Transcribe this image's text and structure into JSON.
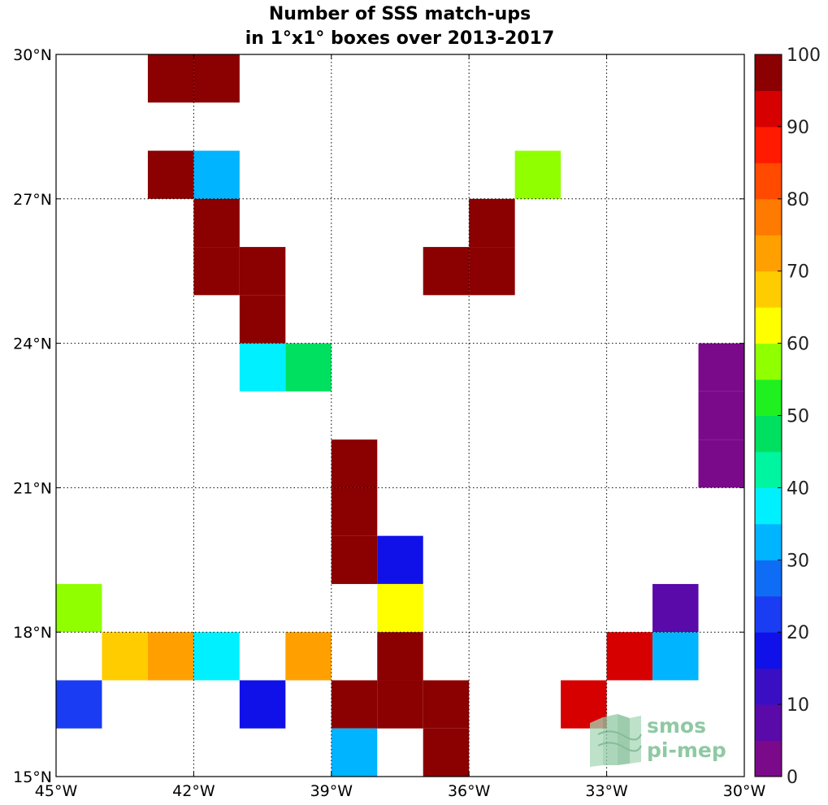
{
  "chart_data": {
    "type": "heatmap",
    "title": [
      "Number of SSS match-ups",
      "in 1°x1° boxes over 2013-2017"
    ],
    "xlim": [
      -45,
      -30
    ],
    "ylim": [
      15,
      30
    ],
    "x_ticks": [
      {
        "value": -45,
        "label": "45°W"
      },
      {
        "value": -42,
        "label": "42°W"
      },
      {
        "value": -39,
        "label": "39°W"
      },
      {
        "value": -36,
        "label": "36°W"
      },
      {
        "value": -33,
        "label": "33°W"
      },
      {
        "value": -30,
        "label": "30°W"
      }
    ],
    "y_ticks": [
      {
        "value": 30,
        "label": "30°N"
      },
      {
        "value": 27,
        "label": "27°N"
      },
      {
        "value": 24,
        "label": "24°N"
      },
      {
        "value": 21,
        "label": "21°N"
      },
      {
        "value": 18,
        "label": "18°N"
      },
      {
        "value": 15,
        "label": "15°N"
      }
    ],
    "grid": true,
    "colorbar": {
      "min": 0,
      "max": 100,
      "ticks": [
        0,
        10,
        20,
        30,
        40,
        50,
        60,
        70,
        80,
        90,
        100
      ],
      "levels": [
        {
          "from": 0,
          "to": 5,
          "color": "#7a0a8a"
        },
        {
          "from": 5,
          "to": 10,
          "color": "#5a0aa8"
        },
        {
          "from": 10,
          "to": 15,
          "color": "#3a0fc4"
        },
        {
          "from": 15,
          "to": 20,
          "color": "#1010e8"
        },
        {
          "from": 20,
          "to": 25,
          "color": "#1a3cf2"
        },
        {
          "from": 25,
          "to": 30,
          "color": "#0f6cf5"
        },
        {
          "from": 30,
          "to": 35,
          "color": "#00b4ff"
        },
        {
          "from": 35,
          "to": 40,
          "color": "#00f0ff"
        },
        {
          "from": 40,
          "to": 45,
          "color": "#00f5a0"
        },
        {
          "from": 45,
          "to": 50,
          "color": "#00e060"
        },
        {
          "from": 50,
          "to": 55,
          "color": "#20f020"
        },
        {
          "from": 55,
          "to": 60,
          "color": "#90ff00"
        },
        {
          "from": 60,
          "to": 65,
          "color": "#ffff00"
        },
        {
          "from": 65,
          "to": 70,
          "color": "#ffcc00"
        },
        {
          "from": 70,
          "to": 75,
          "color": "#ffa000"
        },
        {
          "from": 75,
          "to": 80,
          "color": "#ff7a00"
        },
        {
          "from": 80,
          "to": 85,
          "color": "#ff4a00"
        },
        {
          "from": 85,
          "to": 90,
          "color": "#ff1a00"
        },
        {
          "from": 90,
          "to": 95,
          "color": "#d60000"
        },
        {
          "from": 95,
          "to": 100,
          "color": "#8b0000"
        }
      ]
    },
    "cells": [
      {
        "lon": -43,
        "lat": 29,
        "value": 100
      },
      {
        "lon": -42,
        "lat": 29,
        "value": 100
      },
      {
        "lon": -43,
        "lat": 27,
        "value": 100
      },
      {
        "lon": -42,
        "lat": 27,
        "value": 32
      },
      {
        "lon": -35,
        "lat": 27,
        "value": 58
      },
      {
        "lon": -42,
        "lat": 26,
        "value": 100
      },
      {
        "lon": -36,
        "lat": 26,
        "value": 100
      },
      {
        "lon": -42,
        "lat": 25,
        "value": 100
      },
      {
        "lon": -41,
        "lat": 25,
        "value": 100
      },
      {
        "lon": -37,
        "lat": 25,
        "value": 100
      },
      {
        "lon": -36,
        "lat": 25,
        "value": 100
      },
      {
        "lon": -41,
        "lat": 24,
        "value": 100
      },
      {
        "lon": -41,
        "lat": 23,
        "value": 38
      },
      {
        "lon": -40,
        "lat": 23,
        "value": 47
      },
      {
        "lon": -31,
        "lat": 23,
        "value": 2
      },
      {
        "lon": -31,
        "lat": 22,
        "value": 2
      },
      {
        "lon": -31,
        "lat": 21,
        "value": 2
      },
      {
        "lon": -39,
        "lat": 21,
        "value": 100
      },
      {
        "lon": -39,
        "lat": 20,
        "value": 100
      },
      {
        "lon": -39,
        "lat": 19,
        "value": 100
      },
      {
        "lon": -38,
        "lat": 19,
        "value": 18
      },
      {
        "lon": -45,
        "lat": 18,
        "value": 58
      },
      {
        "lon": -38,
        "lat": 18,
        "value": 62
      },
      {
        "lon": -32,
        "lat": 18,
        "value": 7
      },
      {
        "lon": -44,
        "lat": 17,
        "value": 68
      },
      {
        "lon": -43,
        "lat": 17,
        "value": 72
      },
      {
        "lon": -42,
        "lat": 17,
        "value": 38
      },
      {
        "lon": -40,
        "lat": 17,
        "value": 72
      },
      {
        "lon": -38,
        "lat": 17,
        "value": 100
      },
      {
        "lon": -33,
        "lat": 17,
        "value": 93
      },
      {
        "lon": -32,
        "lat": 17,
        "value": 32
      },
      {
        "lon": -45,
        "lat": 16,
        "value": 22
      },
      {
        "lon": -41,
        "lat": 16,
        "value": 18
      },
      {
        "lon": -39,
        "lat": 16,
        "value": 100
      },
      {
        "lon": -38,
        "lat": 16,
        "value": 100
      },
      {
        "lon": -37,
        "lat": 16,
        "value": 100
      },
      {
        "lon": -34,
        "lat": 16,
        "value": 93
      },
      {
        "lon": -39,
        "lat": 15,
        "value": 32
      },
      {
        "lon": -37,
        "lat": 15,
        "value": 100
      }
    ]
  },
  "logo": {
    "line1": "smos",
    "line2": "pi-mep",
    "color": "#8fc9a3"
  }
}
